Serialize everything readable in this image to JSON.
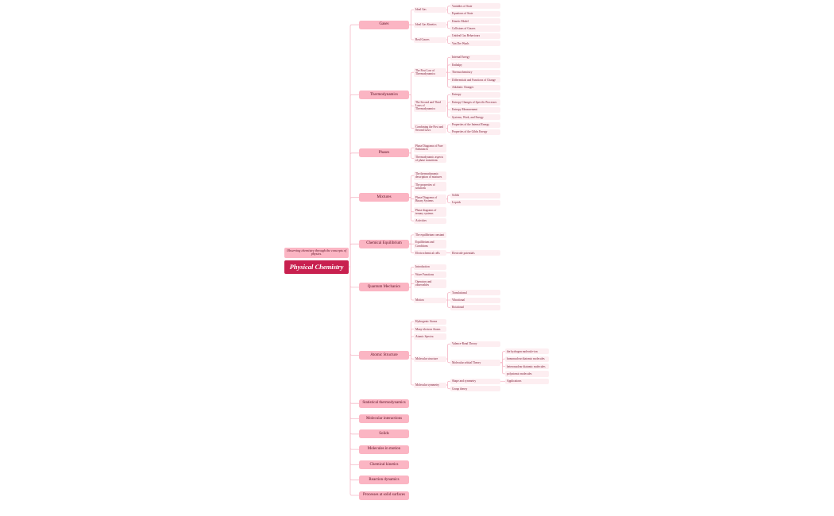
{
  "root": {
    "title": "Physical Chemistry",
    "subtitle": "Observing chemistry through the concepts of physics."
  },
  "colors": {
    "root": "#c8204f",
    "branch": "#fbb5c3",
    "leaf": "#fdeef1",
    "line": "#f6b9c7"
  },
  "branches": [
    {
      "label": "Gases",
      "children": [
        {
          "label": "Ideal Gas",
          "children": [
            {
              "label": "Variables of State"
            },
            {
              "label": "Equations of State"
            }
          ]
        },
        {
          "label": "Ideal Gas Kinetics",
          "children": [
            {
              "label": "Kinetic Model"
            },
            {
              "label": "Collisions of Gasses"
            }
          ]
        },
        {
          "label": "Real Gasses",
          "children": [
            {
              "label": "Unideal Gas Behaviours"
            },
            {
              "label": "Van Der Waals"
            }
          ]
        }
      ]
    },
    {
      "label": "Thermodynamics",
      "children": [
        {
          "label": "The First Law of Thermodynamics",
          "children": [
            {
              "label": "Internal Energy"
            },
            {
              "label": "Enthalpy"
            },
            {
              "label": "Thermochemistry"
            },
            {
              "label": "Differentials and Functions of Change"
            },
            {
              "label": "Adiabatic Changes"
            }
          ]
        },
        {
          "label": "The Second and Third Laws of Thermodynamics",
          "children": [
            {
              "label": "Entropy"
            },
            {
              "label": "Entropy Changes of Specific Processes"
            },
            {
              "label": "Entropy Measurement"
            },
            {
              "label": "Systems, Work, and Energy"
            }
          ]
        },
        {
          "label": "Combining the First and Second Laws",
          "children": [
            {
              "label": "Properties of the Internal Energy"
            },
            {
              "label": "Properties of the Gibbs Energy"
            }
          ]
        }
      ]
    },
    {
      "label": "Phases",
      "children": [
        {
          "label": "Phase Diagrams of Pure Substances"
        },
        {
          "label": "Thermodynamic aspects of phase transitions"
        }
      ]
    },
    {
      "label": "Mixtures",
      "children": [
        {
          "label": "The thermodynamic description of mixtures"
        },
        {
          "label": "The properties of solutions"
        },
        {
          "label": "Phase Diagrams of Binary Systems",
          "children": [
            {
              "label": "Solids"
            },
            {
              "label": "Liquids"
            }
          ]
        },
        {
          "label": "Phase diagrams of ternary systems"
        },
        {
          "label": "Activities"
        }
      ]
    },
    {
      "label": "Chemical Equilibrium",
      "children": [
        {
          "label": "The equilibrium constant"
        },
        {
          "label": "Equilibrium and Conditions"
        },
        {
          "label": "Electrochemical cells",
          "children": [
            {
              "label": "Electrode potentials"
            }
          ]
        }
      ]
    },
    {
      "label": "Quantum Mechanics",
      "children": [
        {
          "label": "Introduction"
        },
        {
          "label": "Wave Functions"
        },
        {
          "label": "Operators and observables"
        },
        {
          "label": "Motion",
          "children": [
            {
              "label": "Translational"
            },
            {
              "label": "Vibrational"
            },
            {
              "label": "Rotational"
            }
          ]
        }
      ]
    },
    {
      "label": "Atomic Structure",
      "children": [
        {
          "label": "Hydrogenic Atoms"
        },
        {
          "label": "Many-electron Atoms"
        },
        {
          "label": "Atomic Spectra"
        },
        {
          "label": "Molecular structure",
          "children": [
            {
              "label": "Valence-Bond Theory"
            },
            {
              "label": "Molecular orbital Theory",
              "children": [
                {
                  "label": "the hydrogen molecule-ion"
                },
                {
                  "label": "homonuclear diatomic molecules"
                },
                {
                  "label": "heteronuclear diatomic molecules"
                },
                {
                  "label": "polyatomic molecules"
                }
              ]
            }
          ]
        },
        {
          "label": "Molecular symmetry",
          "children": [
            {
              "label": "Shape and symmetry",
              "children": [
                {
                  "label": "Applications"
                }
              ]
            },
            {
              "label": "Group theory"
            }
          ]
        }
      ]
    },
    {
      "label": "Statistical thermodynamics"
    },
    {
      "label": "Molecular interactions"
    },
    {
      "label": "Solids"
    },
    {
      "label": "Molecules in motion"
    },
    {
      "label": "Chemical kinetics"
    },
    {
      "label": "Reaction dynamics"
    },
    {
      "label": "Processes at solid surfaces"
    }
  ]
}
